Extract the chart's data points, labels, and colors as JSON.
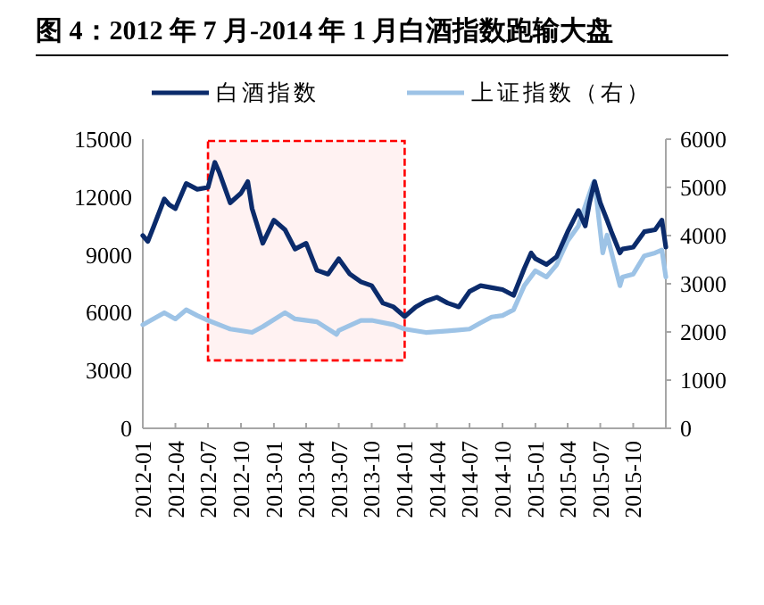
{
  "chart_data": {
    "type": "line",
    "title": "图 4：2012 年 7 月-2014 年 1 月白酒指数跑输大盘",
    "legend": "top",
    "grid": false,
    "line_style": "solid",
    "xlim": [
      "2012-01-01",
      "2015-12-31"
    ],
    "xticks": [
      "2012-01",
      "2012-04",
      "2012-07",
      "2012-10",
      "2013-01",
      "2013-04",
      "2013-07",
      "2013-10",
      "2014-01",
      "2014-04",
      "2014-07",
      "2014-10",
      "2015-01",
      "2015-04",
      "2015-07",
      "2015-10"
    ],
    "ylim": [
      0,
      15000
    ],
    "yticks": [
      0,
      3000,
      6000,
      9000,
      12000,
      15000
    ],
    "y2lim": [
      0,
      6000
    ],
    "y2ticks": [
      0,
      1000,
      2000,
      3000,
      4000,
      5000,
      6000
    ],
    "bands": [
      {
        "axis": "x",
        "from": "2012-07",
        "to": "2014-01",
        "color": "#ff0000"
      }
    ],
    "series": [
      {
        "name": "白酒指数",
        "color": "#0b2b6b",
        "x": [
          "2012-01-01",
          "2012-01-15",
          "2012-02-01",
          "2012-03-01",
          "2012-03-15",
          "2012-04-01",
          "2012-05-01",
          "2012-06-01",
          "2012-07-01",
          "2012-07-20",
          "2012-08-01",
          "2012-09-01",
          "2012-10-01",
          "2012-10-20",
          "2012-11-01",
          "2012-12-01",
          "2013-01-01",
          "2013-02-01",
          "2013-03-01",
          "2013-04-01",
          "2013-05-01",
          "2013-06-01",
          "2013-07-01",
          "2013-08-01",
          "2013-09-01",
          "2013-10-01",
          "2013-11-01",
          "2013-12-01",
          "2014-01-01",
          "2014-02-01",
          "2014-03-01",
          "2014-04-01",
          "2014-05-01",
          "2014-06-01",
          "2014-07-01",
          "2014-08-01",
          "2014-09-01",
          "2014-10-01",
          "2014-11-01",
          "2014-12-01",
          "2014-12-20",
          "2015-01-01",
          "2015-02-01",
          "2015-03-01",
          "2015-04-01",
          "2015-05-01",
          "2015-05-20",
          "2015-06-01",
          "2015-06-15",
          "2015-07-01",
          "2015-07-20",
          "2015-08-01",
          "2015-08-25",
          "2015-09-01",
          "2015-10-01",
          "2015-11-01",
          "2015-12-01",
          "2015-12-20",
          "2015-12-31"
        ],
        "values": [
          10000,
          9700,
          10500,
          11900,
          11600,
          11400,
          12700,
          12400,
          12500,
          13800,
          13300,
          11700,
          12200,
          12800,
          11400,
          9600,
          10800,
          10300,
          9300,
          9600,
          8200,
          8000,
          8800,
          8000,
          7600,
          7400,
          6500,
          6300,
          5800,
          6300,
          6600,
          6800,
          6500,
          6300,
          7100,
          7400,
          7300,
          7200,
          6900,
          8300,
          9100,
          8800,
          8500,
          8900,
          10200,
          11300,
          10500,
          11700,
          12800,
          11700,
          10800,
          10200,
          9100,
          9300,
          9400,
          10200,
          10300,
          10800,
          9400
        ]
      },
      {
        "name": "上证指数（右）",
        "color": "#9dc3e6",
        "axis": "y2",
        "x": [
          "2012-01-01",
          "2012-03-01",
          "2012-04-01",
          "2012-05-01",
          "2012-06-01",
          "2012-07-01",
          "2012-09-01",
          "2012-11-01",
          "2012-12-01",
          "2013-02-01",
          "2013-03-01",
          "2013-05-01",
          "2013-06-25",
          "2013-07-01",
          "2013-09-01",
          "2013-10-01",
          "2013-12-01",
          "2014-01-01",
          "2014-03-01",
          "2014-05-01",
          "2014-07-01",
          "2014-08-01",
          "2014-09-01",
          "2014-10-01",
          "2014-11-01",
          "2014-12-01",
          "2015-01-01",
          "2015-02-01",
          "2015-03-01",
          "2015-04-01",
          "2015-05-01",
          "2015-06-10",
          "2015-06-15",
          "2015-07-08",
          "2015-07-20",
          "2015-08-25",
          "2015-09-01",
          "2015-10-01",
          "2015-11-01",
          "2015-12-01",
          "2015-12-20",
          "2015-12-31"
        ],
        "values": [
          2150,
          2400,
          2270,
          2460,
          2340,
          2240,
          2060,
          1990,
          2110,
          2400,
          2270,
          2210,
          1950,
          2030,
          2240,
          2240,
          2150,
          2060,
          1990,
          2020,
          2060,
          2190,
          2310,
          2340,
          2460,
          2960,
          3270,
          3140,
          3390,
          3890,
          4200,
          5070,
          5130,
          3640,
          4010,
          2960,
          3140,
          3200,
          3580,
          3640,
          3700,
          3140
        ]
      }
    ]
  }
}
